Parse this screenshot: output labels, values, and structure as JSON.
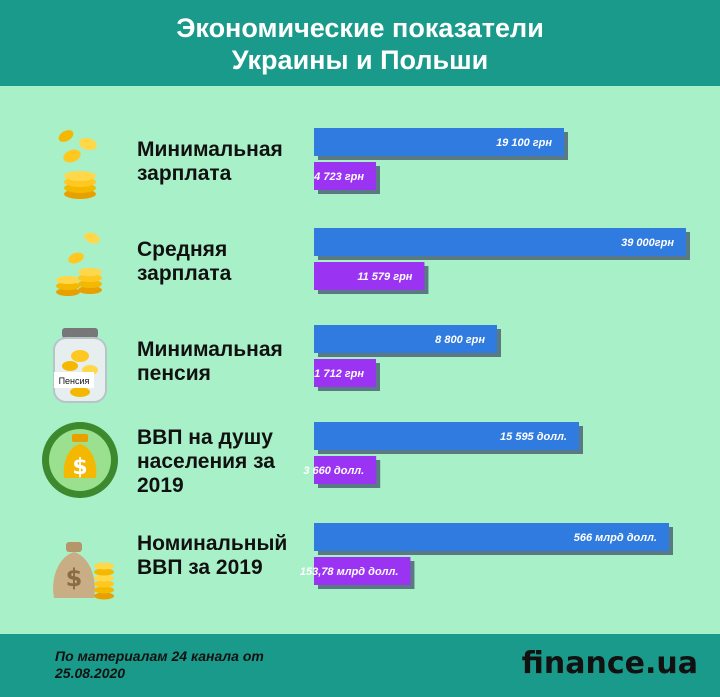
{
  "header": {
    "title_line1": "Экономические показатели",
    "title_line2": "Украины и Польши"
  },
  "colors": {
    "background": "#a8f0c8",
    "header": "#1a9a8a",
    "bar_poland": "#2f7be0",
    "bar_ukraine": "#9b34f2"
  },
  "chart_data": {
    "type": "bar",
    "orientation": "horizontal",
    "categories": [
      "Минимальная зарплата",
      "Средняя зарплата",
      "Минимальная пенсия",
      "ВВП на душу населения за 2019",
      "Номинальный ВВП за 2019"
    ],
    "category_lines": [
      [
        "Минимальная",
        "зарплата"
      ],
      [
        "Средняя",
        "зарплата"
      ],
      [
        "Минимальная",
        "пенсия"
      ],
      [
        "ВВП на душу",
        "населения за",
        "2019"
      ],
      [
        "Номинальный",
        "ВВП за 2019"
      ]
    ],
    "icons": [
      "coins-stack-icon",
      "coins-pile-icon",
      "pension-jar-icon",
      "dollar-bag-circle-icon",
      "money-bag-coins-icon"
    ],
    "pension_jar_label": "Пенсия",
    "rows": [
      {
        "blue": {
          "value": 19100,
          "label": "19 100 грн"
        },
        "purple": {
          "value": 4723,
          "label": "4 723  грн"
        }
      },
      {
        "blue": {
          "value": 39000,
          "label": "39 000грн"
        },
        "purple": {
          "value": 11579,
          "label": "11 579 грн"
        }
      },
      {
        "blue": {
          "value": 8800,
          "label": "8 800 грн"
        },
        "purple": {
          "value": 1712,
          "label": "1 712 грн"
        }
      },
      {
        "blue": {
          "value": 15595,
          "label": "15 595 долл."
        },
        "purple": {
          "value": 3660,
          "label": "3 660 долл."
        }
      },
      {
        "blue": {
          "value": 566,
          "label": "566 млрд долл."
        },
        "purple": {
          "value": 153.78,
          "label": "153,78 млрд долл."
        }
      }
    ],
    "legend": "none",
    "grid": false
  },
  "footer": {
    "source": "По материалам 24 канала от 25.08.2020",
    "logo": "finance.ua"
  }
}
